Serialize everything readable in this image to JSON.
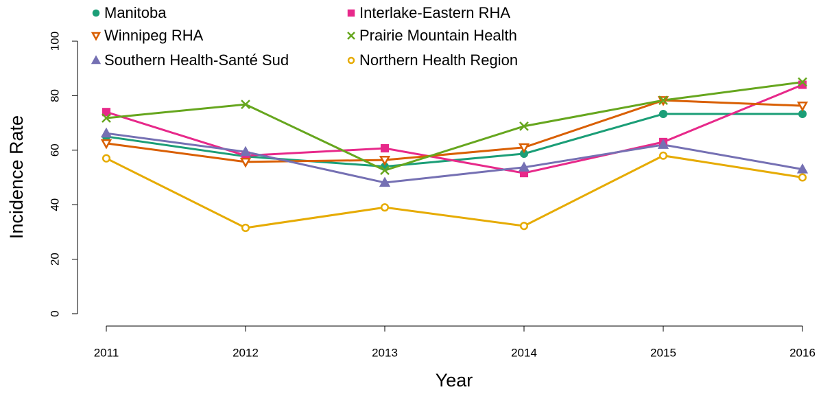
{
  "chart_data": {
    "type": "line",
    "x_label": "Year",
    "y_label": "Incidence Rate",
    "categories": [
      "2011",
      "2012",
      "2013",
      "2014",
      "2015",
      "2016"
    ],
    "ylim": [
      0,
      100
    ],
    "yticks": [
      0,
      20,
      40,
      60,
      80,
      100
    ],
    "series": [
      {
        "name": "Manitoba",
        "color": "#1b9e77",
        "marker": "circle",
        "values": [
          65,
          57.7,
          54,
          58.7,
          73.3,
          73.3
        ]
      },
      {
        "name": "Interlake-Eastern RHA",
        "color": "#e7298a",
        "marker": "square",
        "values": [
          74,
          58,
          60.7,
          51.6,
          63,
          84
        ]
      },
      {
        "name": "Winnipeg RHA",
        "color": "#d95f02",
        "marker": "triangle-down-open",
        "values": [
          62.5,
          55.7,
          56.4,
          61,
          78.3,
          76.3
        ]
      },
      {
        "name": "Prairie Mountain Health",
        "color": "#66a61e",
        "marker": "x",
        "values": [
          71.8,
          76.8,
          52.6,
          68.8,
          78.3,
          85
        ]
      },
      {
        "name": "Southern Health-Santé Sud",
        "color": "#7570b3",
        "marker": "triangle",
        "values": [
          66.2,
          59.4,
          48.1,
          53.7,
          62,
          53
        ]
      },
      {
        "name": "Northern Health Region",
        "color": "#e6ab02",
        "marker": "circle-open",
        "values": [
          57,
          31.5,
          39,
          32.2,
          58,
          50
        ]
      }
    ]
  }
}
